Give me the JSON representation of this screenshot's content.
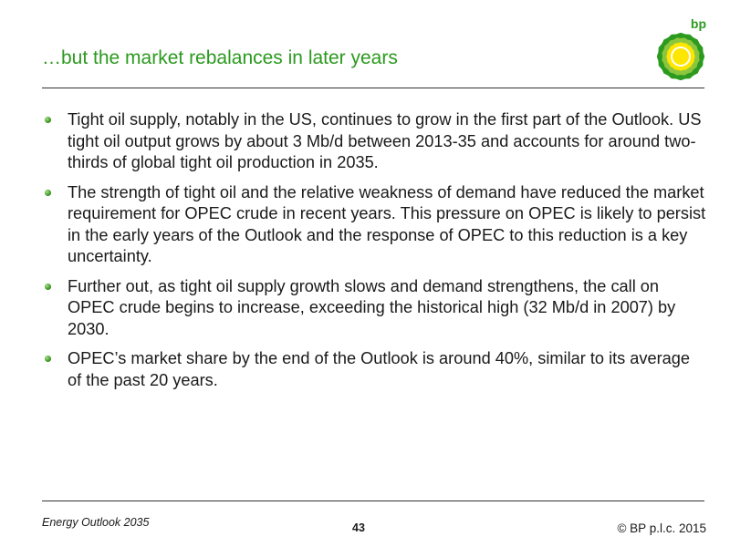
{
  "title": "…but the market rebalances in later years",
  "logo": {
    "text": "bp",
    "icon": "bp-helios-icon",
    "colors": {
      "green": "#2b9a1e",
      "yellow": "#ffe600"
    }
  },
  "bullets": [
    "Tight oil supply, notably in the US, continues to grow in the first part of the Outlook. US tight oil output grows by about 3 Mb/d between 2013-35 and accounts for around two-thirds of global tight oil production in 2035.",
    "The strength of tight oil and the relative weakness of demand have reduced the market requirement for OPEC crude in recent years. This pressure on OPEC is likely to persist in the early years of the Outlook and the response of OPEC to this reduction is a key uncertainty.",
    "Further out, as tight oil supply growth slows and demand strengthens, the call on OPEC crude begins to increase, exceeding the historical high (32 Mb/d in 2007) by 2030.",
    "OPEC’s market share by the end of the Outlook is around 40%, similar to its average of the past 20 years."
  ],
  "footer": {
    "left": "Energy Outlook 2035",
    "page": "43",
    "right": "© BP p.l.c. 2015"
  }
}
